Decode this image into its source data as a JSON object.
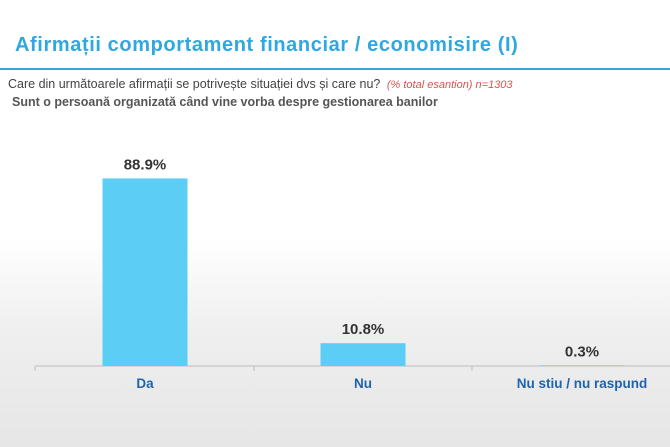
{
  "header": {
    "title": "Afirmații comportament financiar / economisire (I)"
  },
  "question": {
    "text": "Care din următoarele afirmații se potrivește situației dvs și care nu?",
    "sample_note": "(% total esantion) n=1303"
  },
  "statement": "Sunt o persoană organizată când vine vorba despre gestionarea banilor",
  "chart_data": {
    "type": "bar",
    "categories": [
      "Da",
      "Nu",
      "Nu stiu / nu raspund"
    ],
    "values": [
      88.9,
      10.8,
      0.3
    ],
    "value_labels": [
      "88.9%",
      "10.8%",
      "0.3%"
    ],
    "title": "",
    "xlabel": "",
    "ylabel": "",
    "ylim": [
      0,
      100
    ],
    "grid": false,
    "legend": "none",
    "bar_color": "#5ccdf5",
    "axis_color": "#bdbdbd"
  }
}
